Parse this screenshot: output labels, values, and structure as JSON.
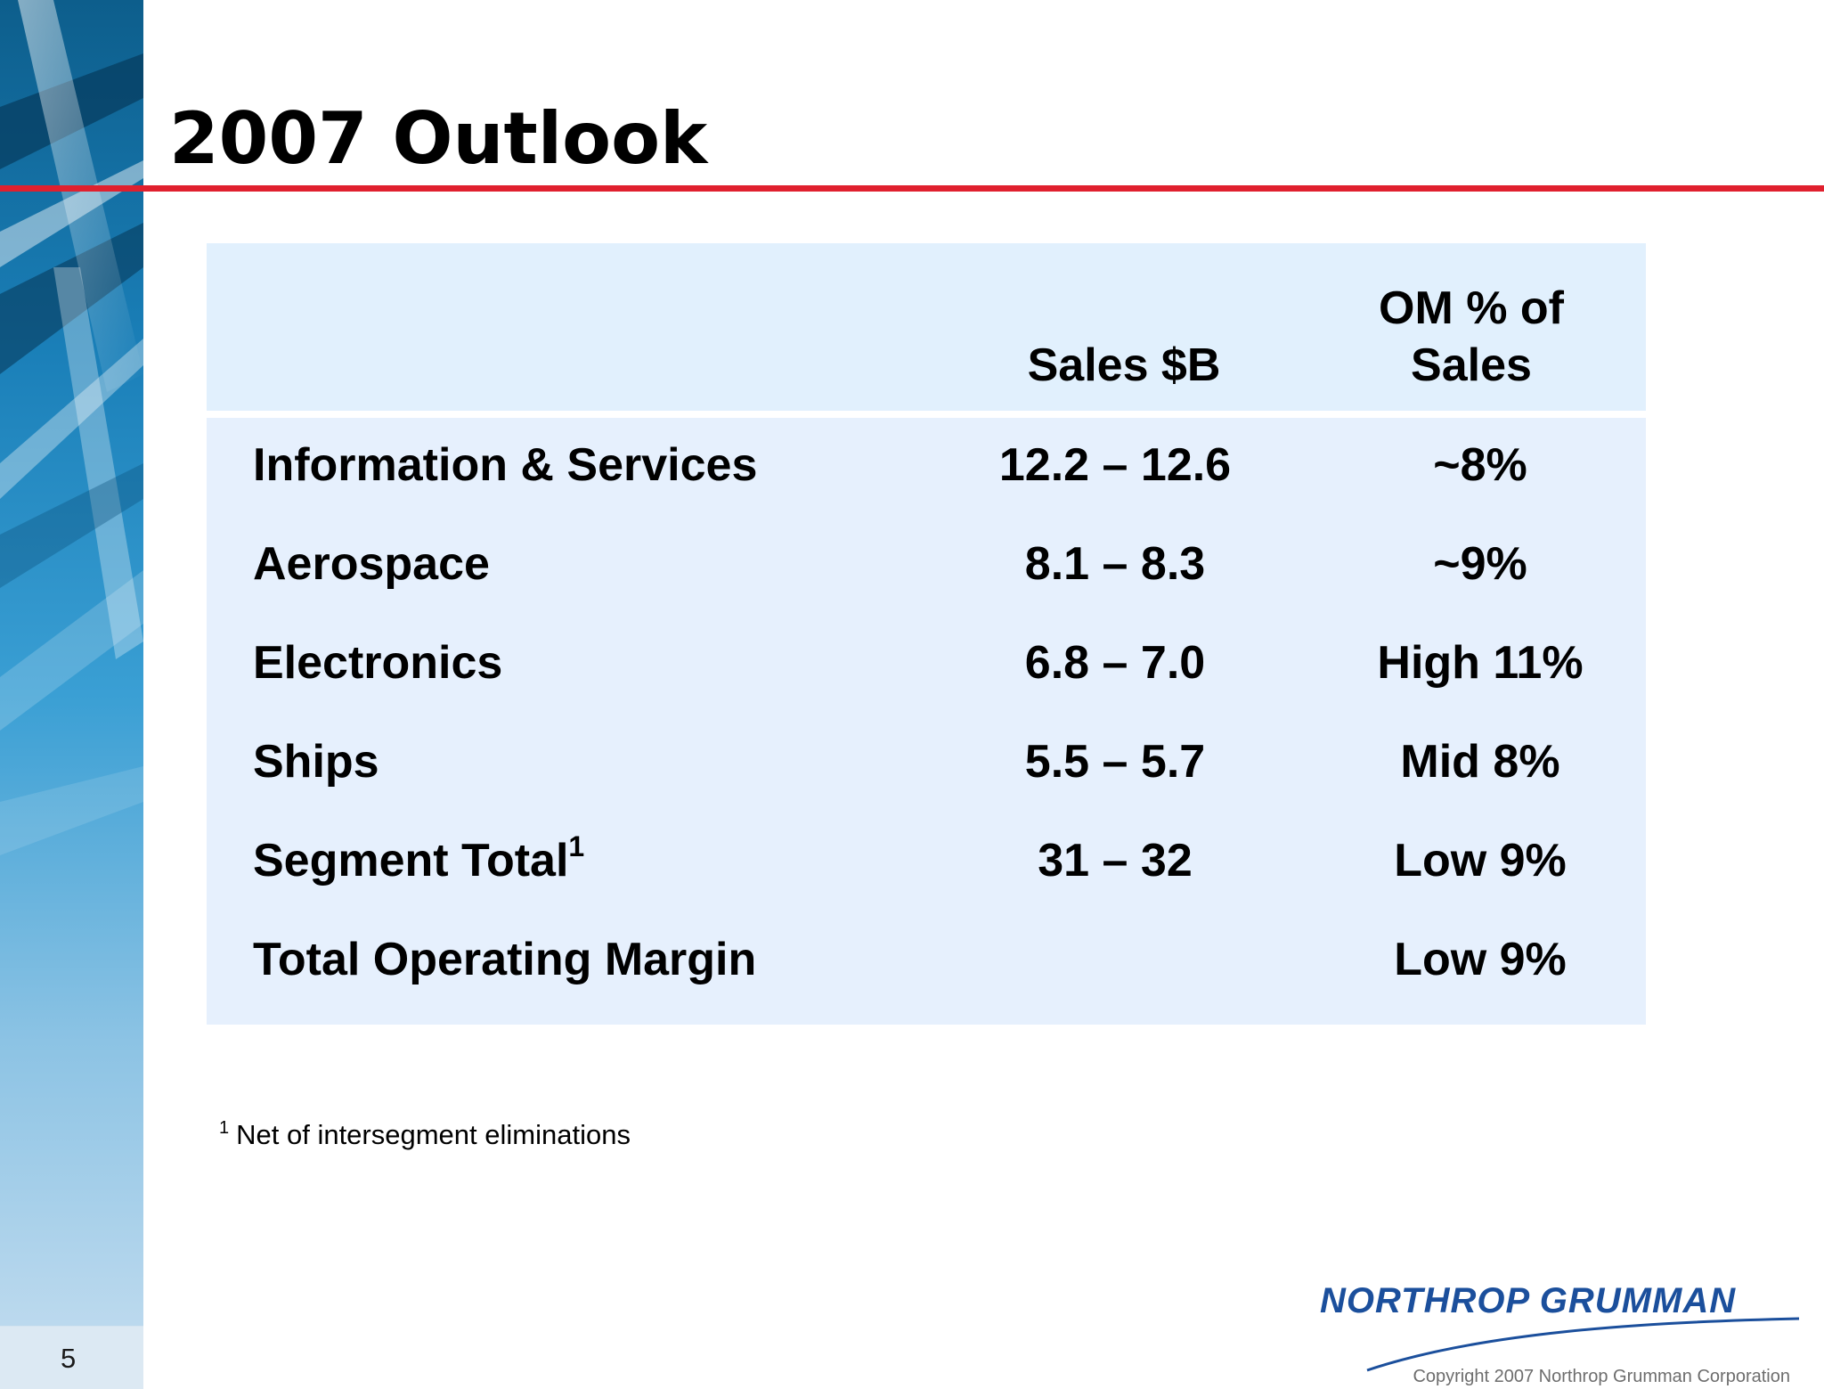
{
  "slide": {
    "title": "2007 Outlook",
    "page_number": "5",
    "footnote_marker": "1",
    "footnote_text": "Net of intersegment eliminations",
    "logo_text": "NORTHROP GRUMMAN",
    "copyright": "Copyright 2007 Northrop Grumman Corporation",
    "colors": {
      "title_rule": "#e0202e",
      "table_header_bg": "#e1f0fd",
      "table_body_bg": "#e6f0fd",
      "logo": "#1b4f9c"
    }
  },
  "table": {
    "headers": {
      "sales_line1": "Sales $B",
      "om_line1": "OM % of",
      "om_line2": "Sales"
    },
    "rows": [
      {
        "label": "Information & Services",
        "sup": "",
        "sales": "12.2 – 12.6",
        "om": "~8%"
      },
      {
        "label": "Aerospace",
        "sup": "",
        "sales": "8.1 – 8.3",
        "om": "~9%"
      },
      {
        "label": "Electronics",
        "sup": "",
        "sales": "6.8 – 7.0",
        "om": "High 11%"
      },
      {
        "label": "Ships",
        "sup": "",
        "sales": "5.5 – 5.7",
        "om": "Mid 8%"
      },
      {
        "label": "Segment Total",
        "sup": "1",
        "sales": "31 – 32",
        "om": "Low 9%"
      },
      {
        "label": "Total Operating Margin",
        "sup": "",
        "sales": "",
        "om": "Low 9%"
      }
    ]
  }
}
